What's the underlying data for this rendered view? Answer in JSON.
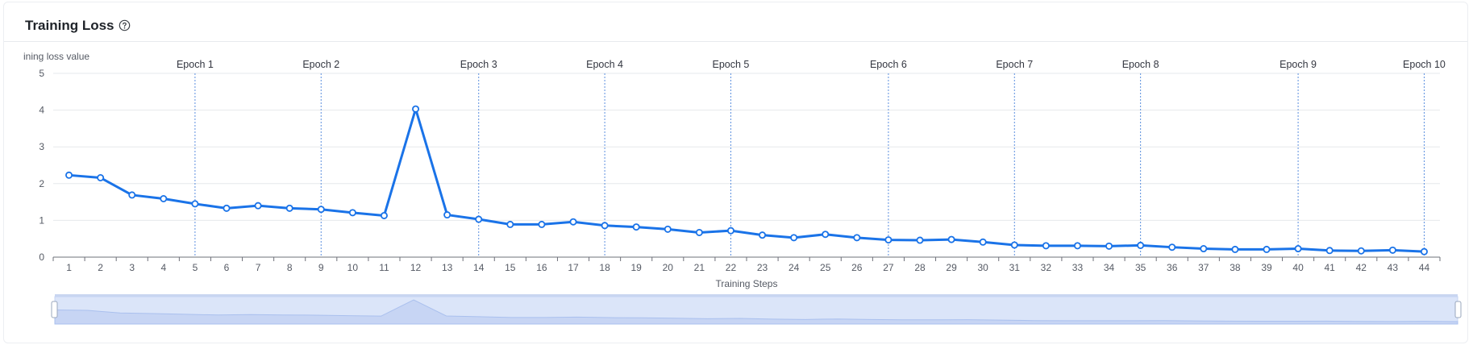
{
  "panel": {
    "title": "Training Loss",
    "help_icon": "question-circle-icon"
  },
  "colors": {
    "line": "#1a73e8",
    "marker_fill": "#ffffff",
    "epoch_line": "#5b8fde",
    "grid": "#e6e8ec",
    "axis": "#6e7079",
    "text": "#555a64",
    "slider_fill": "#dbe5f9",
    "slider_border": "#c5d4f3",
    "slider_handle": "#ffffff"
  },
  "chart_data": {
    "type": "line",
    "title": "Training Loss",
    "xlabel": "Training Steps",
    "ylabel": "ining loss value",
    "ylim": [
      0,
      5
    ],
    "yticks": [
      0,
      1,
      2,
      3,
      4,
      5
    ],
    "grid": true,
    "x": [
      1,
      2,
      3,
      4,
      5,
      6,
      7,
      8,
      9,
      10,
      11,
      12,
      13,
      14,
      15,
      16,
      17,
      18,
      19,
      20,
      21,
      22,
      23,
      24,
      25,
      26,
      27,
      28,
      29,
      30,
      31,
      32,
      33,
      34,
      35,
      36,
      37,
      38,
      39,
      40,
      41,
      42,
      43,
      44
    ],
    "series": [
      {
        "values": [
          2.23,
          2.16,
          1.69,
          1.59,
          1.45,
          1.33,
          1.4,
          1.33,
          1.3,
          1.21,
          1.13,
          4.03,
          1.15,
          1.03,
          0.89,
          0.89,
          0.96,
          0.86,
          0.82,
          0.76,
          0.67,
          0.72,
          0.6,
          0.53,
          0.62,
          0.53,
          0.47,
          0.46,
          0.48,
          0.41,
          0.33,
          0.31,
          0.31,
          0.3,
          0.32,
          0.27,
          0.23,
          0.21,
          0.21,
          0.23,
          0.18,
          0.17,
          0.19,
          0.15
        ]
      }
    ],
    "epoch_markers": [
      {
        "label": "Epoch 1",
        "step": 5
      },
      {
        "label": "Epoch 2",
        "step": 9
      },
      {
        "label": "Epoch 3",
        "step": 14
      },
      {
        "label": "Epoch 4",
        "step": 18
      },
      {
        "label": "Epoch 5",
        "step": 22
      },
      {
        "label": "Epoch 6",
        "step": 27
      },
      {
        "label": "Epoch 7",
        "step": 31
      },
      {
        "label": "Epoch 8",
        "step": 35
      },
      {
        "label": "Epoch 9",
        "step": 40
      },
      {
        "label": "Epoch 10",
        "step": 44
      }
    ],
    "zoom_range": [
      0,
      100
    ]
  }
}
